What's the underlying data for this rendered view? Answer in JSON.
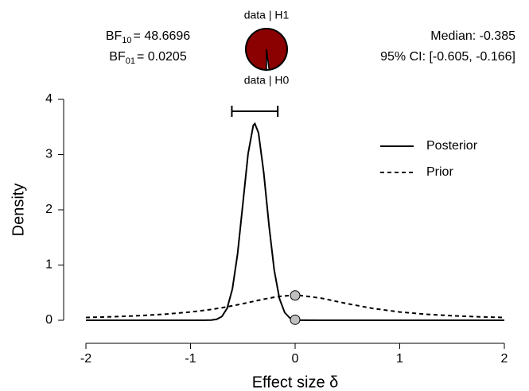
{
  "chart_data": {
    "type": "line",
    "x": [
      -2,
      -1.75,
      -1.5,
      -1.25,
      -1,
      -0.85,
      -0.8,
      -0.75,
      -0.7,
      -0.65,
      -0.6,
      -0.55,
      -0.5,
      -0.45,
      -0.4,
      -0.385,
      -0.35,
      -0.3,
      -0.25,
      -0.2,
      -0.15,
      -0.1,
      -0.05,
      0,
      0.05,
      0.25,
      0.5,
      0.75,
      1,
      1.25,
      1.5,
      1.75,
      2
    ],
    "series": [
      {
        "name": "Posterior",
        "color": "#000000",
        "dash": false,
        "values": [
          0,
          0,
          0,
          0,
          0,
          0.001,
          0.004,
          0.018,
          0.068,
          0.217,
          0.564,
          1.204,
          2.102,
          3.011,
          3.53,
          3.56,
          3.392,
          2.671,
          1.723,
          0.91,
          0.394,
          0.14,
          0.041,
          0.0097,
          0.002,
          0,
          0,
          0,
          0,
          0,
          0,
          0,
          0
        ]
      },
      {
        "name": "Prior",
        "color": "#000000",
        "dash": true,
        "values": [
          0.05,
          0.063,
          0.082,
          0.109,
          0.15,
          0.184,
          0.197,
          0.212,
          0.227,
          0.244,
          0.262,
          0.28,
          0.3,
          0.32,
          0.341,
          0.347,
          0.362,
          0.381,
          0.4,
          0.417,
          0.431,
          0.441,
          0.448,
          0.45,
          0.448,
          0.4,
          0.3,
          0.212,
          0.15,
          0.109,
          0.082,
          0.063,
          0.05
        ]
      }
    ],
    "points": {
      "x": [
        0,
        0
      ],
      "y": [
        0.45,
        0.0097
      ],
      "color": "#bfbfbf"
    },
    "ci": {
      "lower": -0.605,
      "upper": -0.166
    },
    "xlabel": "Effect size δ",
    "ylabel": "Density",
    "xlim": [
      -2,
      2
    ],
    "ylim": [
      0,
      4
    ],
    "xticks": [
      -2,
      -1,
      0,
      1,
      2
    ],
    "yticks": [
      0,
      1,
      2,
      3,
      4
    ],
    "bf10": {
      "symbol": "BF",
      "subscript": "10",
      "value": "= 48.6696"
    },
    "bf01": {
      "symbol": "BF",
      "subscript": "01",
      "value": "= 0.0205"
    },
    "median": "Median: -0.385",
    "ci_text": "95% CI: [-0.605, -0.166]",
    "pie": {
      "labels": [
        "data | H1",
        "data | H0"
      ],
      "values": [
        0.9799,
        0.0201
      ],
      "colors": [
        "#8b0000",
        "#ffffff"
      ]
    }
  }
}
